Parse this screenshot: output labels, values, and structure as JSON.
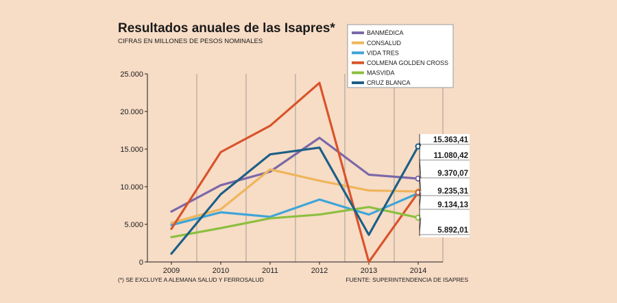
{
  "chart_data": {
    "type": "line",
    "title": "Resultados anuales de las Isapres*",
    "subtitle": "CIFRAS EN MILLONES DE PESOS NOMINALES",
    "x": [
      "2009",
      "2010",
      "2011",
      "2012",
      "2013",
      "2014"
    ],
    "ylim": [
      0,
      25000
    ],
    "yticks": [
      0,
      5000,
      10000,
      15000,
      20000,
      25000
    ],
    "ytick_labels": [
      "0",
      "5.000",
      "10.000",
      "15.000",
      "20.000",
      "25.000"
    ],
    "grid": "vertical",
    "legend_position": "top-right",
    "series": [
      {
        "name": "BANMÉDICA",
        "color": "#7b68a8",
        "values": [
          6700,
          10200,
          12000,
          16500,
          11600,
          11080.42
        ]
      },
      {
        "name": "CONSALUD",
        "color": "#eeb55a",
        "values": [
          5200,
          7000,
          12300,
          10800,
          9500,
          9370.07
        ]
      },
      {
        "name": "VIDA TRES",
        "color": "#3ea5d8",
        "values": [
          4900,
          6600,
          6000,
          8300,
          6300,
          9134.13
        ]
      },
      {
        "name": "COLMENA GOLDEN CROSS",
        "color": "#d9532a",
        "values": [
          4400,
          14600,
          18100,
          23800,
          0,
          9235.31
        ]
      },
      {
        "name": "MASVIDA",
        "color": "#8cbf3f",
        "values": [
          3300,
          4500,
          5800,
          6300,
          7300,
          5892.01
        ]
      },
      {
        "name": "CRUZ BLANCA",
        "color": "#1c5f86",
        "values": [
          1100,
          9000,
          14300,
          15200,
          3600,
          15363.41
        ]
      }
    ],
    "end_labels": [
      "15.363,41",
      "11.080,42",
      "9.370,07",
      "9.235,31",
      "9.134,13",
      "5.892,01"
    ],
    "note": "(*) SE EXCLUYE A ALEMANA SALUD Y FERROSALUD",
    "source": "FUENTE: SUPERINTENDENCIA DE ISAPRES"
  }
}
